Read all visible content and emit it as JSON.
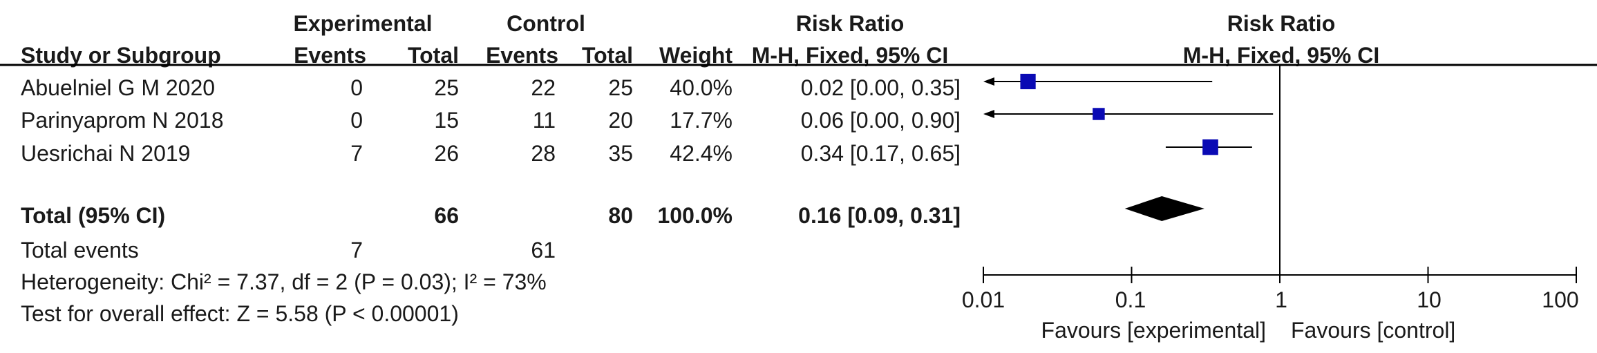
{
  "header": {
    "experimental": "Experimental",
    "control": "Control",
    "risk_ratio_left": "Risk Ratio",
    "risk_ratio_right": "Risk Ratio",
    "study": "Study or Subgroup",
    "events_exp": "Events",
    "total_exp": "Total",
    "events_ctl": "Events",
    "total_ctl": "Total",
    "weight": "Weight",
    "method_left": "M-H, Fixed, 95% CI",
    "method_right": "M-H, Fixed, 95% CI"
  },
  "studies": [
    {
      "name": "Abuelniel  G  M 2020",
      "exp_events": "0",
      "exp_total": "25",
      "ctl_events": "22",
      "ctl_total": "25",
      "weight": "40.0%",
      "ci_text": "0.02 [0.00, 0.35]"
    },
    {
      "name": "Parinyaprom N 2018",
      "exp_events": "0",
      "exp_total": "15",
      "ctl_events": "11",
      "ctl_total": "20",
      "weight": "17.7%",
      "ci_text": "0.06 [0.00, 0.90]"
    },
    {
      "name": "Uesrichai N 2019",
      "exp_events": "7",
      "exp_total": "26",
      "ctl_events": "28",
      "ctl_total": "35",
      "weight": "42.4%",
      "ci_text": "0.34 [0.17, 0.65]"
    }
  ],
  "total": {
    "label": "Total (95% CI)",
    "exp_total": "66",
    "ctl_total": "80",
    "weight": "100.0%",
    "ci_text": "0.16 [0.09, 0.31]"
  },
  "total_events": {
    "label": "Total events",
    "exp": "7",
    "ctl": "61"
  },
  "heterogeneity": "Heterogeneity: Chi² = 7.37, df = 2 (P = 0.03); I² = 73%",
  "overall_effect": "Test for overall effect: Z = 5.58 (P < 0.00001)",
  "axis": {
    "ticks": [
      "0.01",
      "0.1",
      "1",
      "10",
      "100"
    ],
    "favours_left": "Favours [experimental]",
    "favours_right": "Favours [control]"
  },
  "colors": {
    "study_marker": "#0a0ab4",
    "total_marker": "#000000",
    "line": "#000000"
  },
  "chart_data": {
    "type": "forest",
    "scale": "log",
    "xlim": [
      0.01,
      100
    ],
    "null_line": 1,
    "series": [
      {
        "name": "Abuelniel  G  M 2020",
        "rr": 0.02,
        "lo": 0.0,
        "hi": 0.35,
        "weight": 40.0
      },
      {
        "name": "Parinyaprom N 2018",
        "rr": 0.06,
        "lo": 0.0,
        "hi": 0.9,
        "weight": 17.7
      },
      {
        "name": "Uesrichai N 2019",
        "rr": 0.34,
        "lo": 0.17,
        "hi": 0.65,
        "weight": 42.4
      }
    ],
    "pooled": {
      "name": "Total (95% CI)",
      "rr": 0.16,
      "lo": 0.09,
      "hi": 0.31
    }
  }
}
